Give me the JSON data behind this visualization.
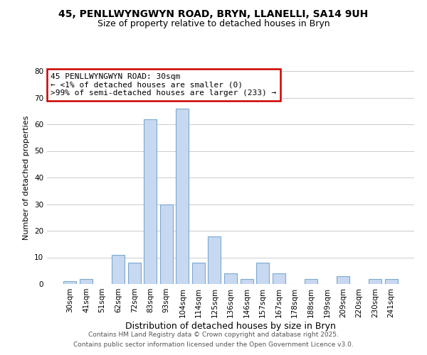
{
  "title": "45, PENLLWYNGWYN ROAD, BRYN, LLANELLI, SA14 9UH",
  "subtitle": "Size of property relative to detached houses in Bryn",
  "xlabel": "Distribution of detached houses by size in Bryn",
  "ylabel": "Number of detached properties",
  "categories": [
    "30sqm",
    "41sqm",
    "51sqm",
    "62sqm",
    "72sqm",
    "83sqm",
    "93sqm",
    "104sqm",
    "114sqm",
    "125sqm",
    "136sqm",
    "146sqm",
    "157sqm",
    "167sqm",
    "178sqm",
    "188sqm",
    "199sqm",
    "209sqm",
    "220sqm",
    "230sqm",
    "241sqm"
  ],
  "values": [
    1,
    2,
    0,
    11,
    8,
    62,
    30,
    66,
    8,
    18,
    4,
    2,
    8,
    4,
    0,
    2,
    0,
    3,
    0,
    2,
    2
  ],
  "bar_color": "#c8d8f0",
  "bar_edge_color": "#7aaad0",
  "annotation_box_text": "45 PENLLWYNGWYN ROAD: 30sqm\n← <1% of detached houses are smaller (0)\n>99% of semi-detached houses are larger (233) →",
  "annotation_box_color": "#ffffff",
  "annotation_box_edge_color": "#cc0000",
  "ylim": [
    0,
    80
  ],
  "yticks": [
    0,
    10,
    20,
    30,
    40,
    50,
    60,
    70,
    80
  ],
  "grid_color": "#cccccc",
  "background_color": "#ffffff",
  "footer_line1": "Contains HM Land Registry data © Crown copyright and database right 2025.",
  "footer_line2": "Contains public sector information licensed under the Open Government Licence v3.0.",
  "title_fontsize": 10,
  "subtitle_fontsize": 9,
  "xlabel_fontsize": 9,
  "ylabel_fontsize": 8,
  "tick_fontsize": 7.5,
  "annotation_fontsize": 8,
  "footer_fontsize": 6.5
}
